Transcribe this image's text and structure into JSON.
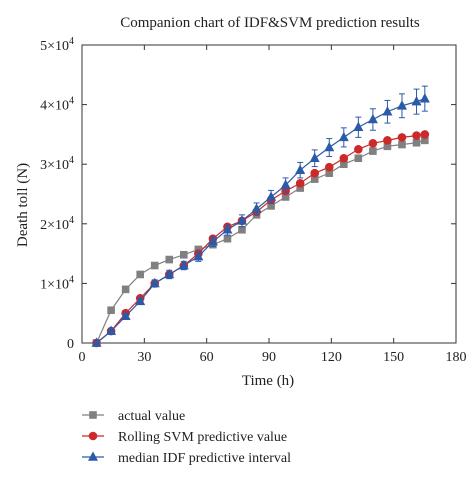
{
  "chart_data": {
    "type": "line",
    "title": "Companion chart of IDF&SVM prediction results",
    "xlabel": "Time (h)",
    "ylabel": "Death toll (N)",
    "xlim": [
      0,
      180
    ],
    "ylim": [
      0,
      50000
    ],
    "x_ticks": [
      0,
      30,
      60,
      90,
      120,
      150,
      180
    ],
    "y_ticks": [
      {
        "value": 0,
        "base": "0",
        "exp": ""
      },
      {
        "value": 10000,
        "base": "1×10",
        "exp": "4"
      },
      {
        "value": 20000,
        "base": "2×10",
        "exp": "4"
      },
      {
        "value": 30000,
        "base": "3×10",
        "exp": "4"
      },
      {
        "value": 40000,
        "base": "4×10",
        "exp": "4"
      },
      {
        "value": 50000,
        "base": "5×10",
        "exp": "4"
      }
    ],
    "grid": false,
    "legend_position": "bottom",
    "series": [
      {
        "name": "actual value",
        "color": "#808080",
        "marker": "square",
        "x": [
          7,
          14,
          21,
          28,
          35,
          42,
          49,
          56,
          63,
          70,
          77,
          84,
          91,
          98,
          105,
          112,
          119,
          126,
          133,
          140,
          147,
          154,
          161,
          165
        ],
        "y": [
          0,
          5500,
          9000,
          11500,
          13000,
          14000,
          14800,
          15700,
          16500,
          17500,
          19000,
          21500,
          23000,
          24500,
          26000,
          27500,
          28500,
          30000,
          31000,
          32200,
          33000,
          33300,
          33600,
          34000
        ]
      },
      {
        "name": "Rolling SVM predictive value",
        "color": "#cc2a2a",
        "marker": "circle",
        "x": [
          7,
          14,
          21,
          28,
          35,
          42,
          49,
          56,
          63,
          70,
          77,
          84,
          91,
          98,
          105,
          112,
          119,
          126,
          133,
          140,
          147,
          154,
          161,
          165
        ],
        "y": [
          0,
          2000,
          5000,
          7500,
          10000,
          11500,
          13000,
          15000,
          17500,
          19500,
          20500,
          22000,
          24000,
          25500,
          26800,
          28500,
          29500,
          31000,
          32500,
          33500,
          34000,
          34500,
          34800,
          35000
        ]
      },
      {
        "name": "median IDF predictive interval",
        "color": "#2a5aa8",
        "marker": "triangle",
        "x": [
          7,
          14,
          21,
          28,
          35,
          42,
          49,
          56,
          63,
          70,
          77,
          84,
          91,
          98,
          105,
          112,
          119,
          126,
          133,
          140,
          147,
          154,
          161,
          165
        ],
        "y": [
          0,
          2000,
          4500,
          7000,
          10000,
          11500,
          13000,
          14500,
          17000,
          19000,
          20500,
          22500,
          24500,
          26500,
          29000,
          31000,
          32800,
          34500,
          36200,
          37500,
          38800,
          39800,
          40500,
          41000
        ],
        "error": [
          0,
          300,
          400,
          500,
          600,
          700,
          700,
          800,
          800,
          900,
          1000,
          1000,
          1100,
          1200,
          1300,
          1400,
          1500,
          1600,
          1700,
          1800,
          1900,
          2000,
          2100,
          2100
        ]
      }
    ]
  }
}
